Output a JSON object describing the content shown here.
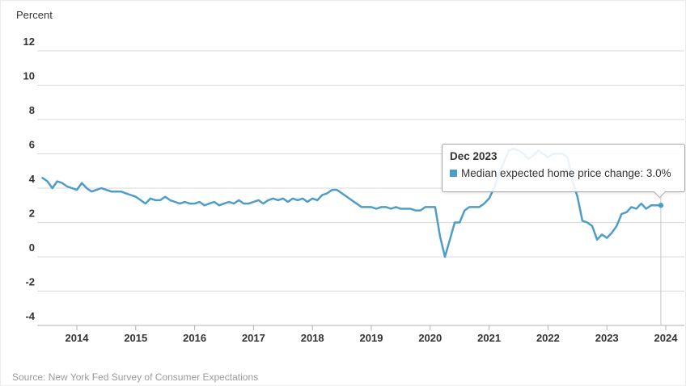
{
  "header": {
    "unit_label": "Percent"
  },
  "tooltip": {
    "title": "Dec 2023",
    "series_label": "Median expected home price change",
    "value": "3.0%",
    "text": "Median expected home price change: 3.0%"
  },
  "footer": {
    "source": "Source: New York Fed Survey of Consumer Expectations"
  },
  "colors": {
    "line": "#4e9dc8",
    "grid": "#d9d9d9",
    "axis": "#b0b0b0",
    "tick_text": "#333333",
    "crosshair": "#c5c5c5",
    "tooltip_border": "#a8a8a8",
    "source_text": "#9a9a9a"
  },
  "chart_data": {
    "type": "line",
    "title": "Percent",
    "xlabel": "",
    "ylabel": "Percent",
    "ylim": [
      -4,
      12
    ],
    "yticks": [
      12,
      10,
      8,
      6,
      4,
      2,
      0,
      -2,
      -4
    ],
    "xticks": [
      2014,
      2015,
      2016,
      2017,
      2018,
      2019,
      2020,
      2021,
      2022,
      2023,
      2024
    ],
    "grid": "horizontal-only",
    "legend": "none",
    "series": [
      {
        "name": "Median expected home price change",
        "frequency": "monthly",
        "start": "2013-06",
        "end": "2023-12",
        "values": [
          4.6,
          4.4,
          4.0,
          4.4,
          4.3,
          4.1,
          4.0,
          3.9,
          4.3,
          4.0,
          3.8,
          3.9,
          4.0,
          3.9,
          3.8,
          3.8,
          3.8,
          3.7,
          3.6,
          3.5,
          3.3,
          3.1,
          3.4,
          3.3,
          3.3,
          3.5,
          3.3,
          3.2,
          3.1,
          3.2,
          3.1,
          3.1,
          3.2,
          3.0,
          3.1,
          3.2,
          3.0,
          3.1,
          3.2,
          3.1,
          3.3,
          3.1,
          3.1,
          3.2,
          3.3,
          3.1,
          3.3,
          3.4,
          3.3,
          3.4,
          3.2,
          3.4,
          3.3,
          3.4,
          3.2,
          3.4,
          3.3,
          3.6,
          3.7,
          3.9,
          3.9,
          3.7,
          3.5,
          3.3,
          3.1,
          2.9,
          2.9,
          2.9,
          2.8,
          2.9,
          2.9,
          2.8,
          2.9,
          2.8,
          2.8,
          2.8,
          2.7,
          2.7,
          2.9,
          2.9,
          2.9,
          1.2,
          0.0,
          1.0,
          2.0,
          2.0,
          2.7,
          2.9,
          2.9,
          2.9,
          3.1,
          3.4,
          4.0,
          4.8,
          5.5,
          6.2,
          6.3,
          6.2,
          6.0,
          5.7,
          5.9,
          6.2,
          6.0,
          5.8,
          6.0,
          6.0,
          6.0,
          5.8,
          4.4,
          3.5,
          2.1,
          2.0,
          1.8,
          1.0,
          1.3,
          1.1,
          1.4,
          1.8,
          2.5,
          2.6,
          2.9,
          2.8,
          3.1,
          2.8,
          3.0,
          3.0,
          3.0
        ]
      }
    ],
    "highlight_point": {
      "period": "Dec 2023",
      "value": 3.0
    },
    "source": "Source: New York Fed Survey of Consumer Expectations"
  }
}
